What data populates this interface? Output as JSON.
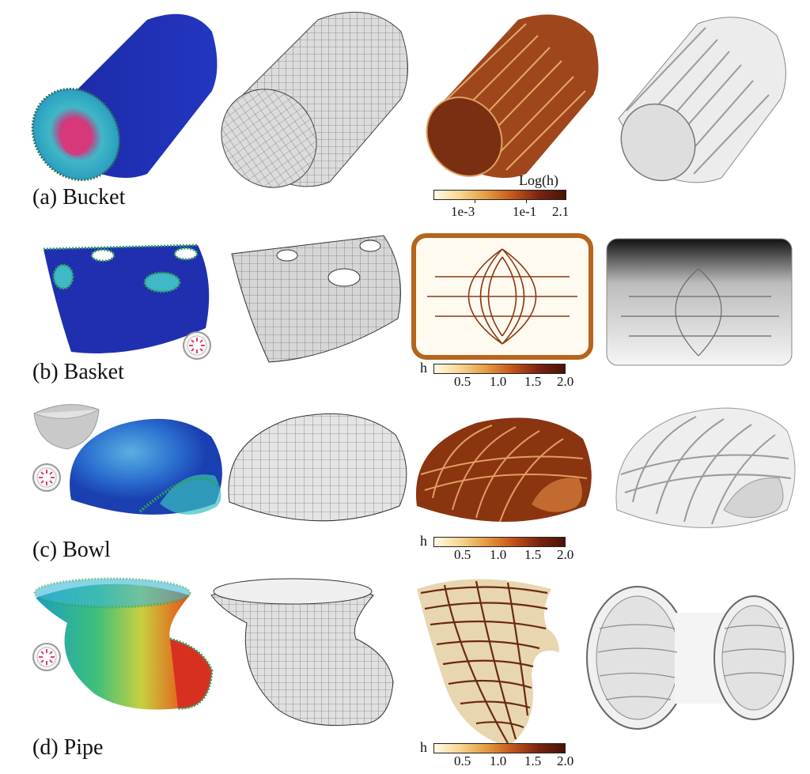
{
  "rows": [
    {
      "id": "a",
      "caption": "(a) Bucket"
    },
    {
      "id": "b",
      "caption": "(b) Basket"
    },
    {
      "id": "c",
      "caption": "(c) Bowl"
    },
    {
      "id": "d",
      "caption": "(d) Pipe"
    }
  ],
  "colorbars": [
    {
      "row": "a",
      "title": "Log(h)",
      "label": "",
      "ticks": [
        "1e-3",
        "1e-1",
        "2.1"
      ]
    },
    {
      "row": "b",
      "title": "",
      "label": "h",
      "ticks": [
        "0.5",
        "1.0",
        "1.5",
        "2.0"
      ]
    },
    {
      "row": "c",
      "title": "",
      "label": "h",
      "ticks": [
        "0.5",
        "1.0",
        "1.5",
        "2.0"
      ]
    },
    {
      "row": "d",
      "title": "",
      "label": "h",
      "ticks": [
        "0.5",
        "1.0",
        "1.5",
        "2.0"
      ]
    }
  ],
  "colors": {
    "blue_field": "#1f2fb0",
    "mesh_gray": "#d9d9d9",
    "rib_brown": "#7a2e12",
    "white_model": "#f2f2f2",
    "cbar_low": "#fffbe6",
    "cbar_high": "#4a1208"
  }
}
